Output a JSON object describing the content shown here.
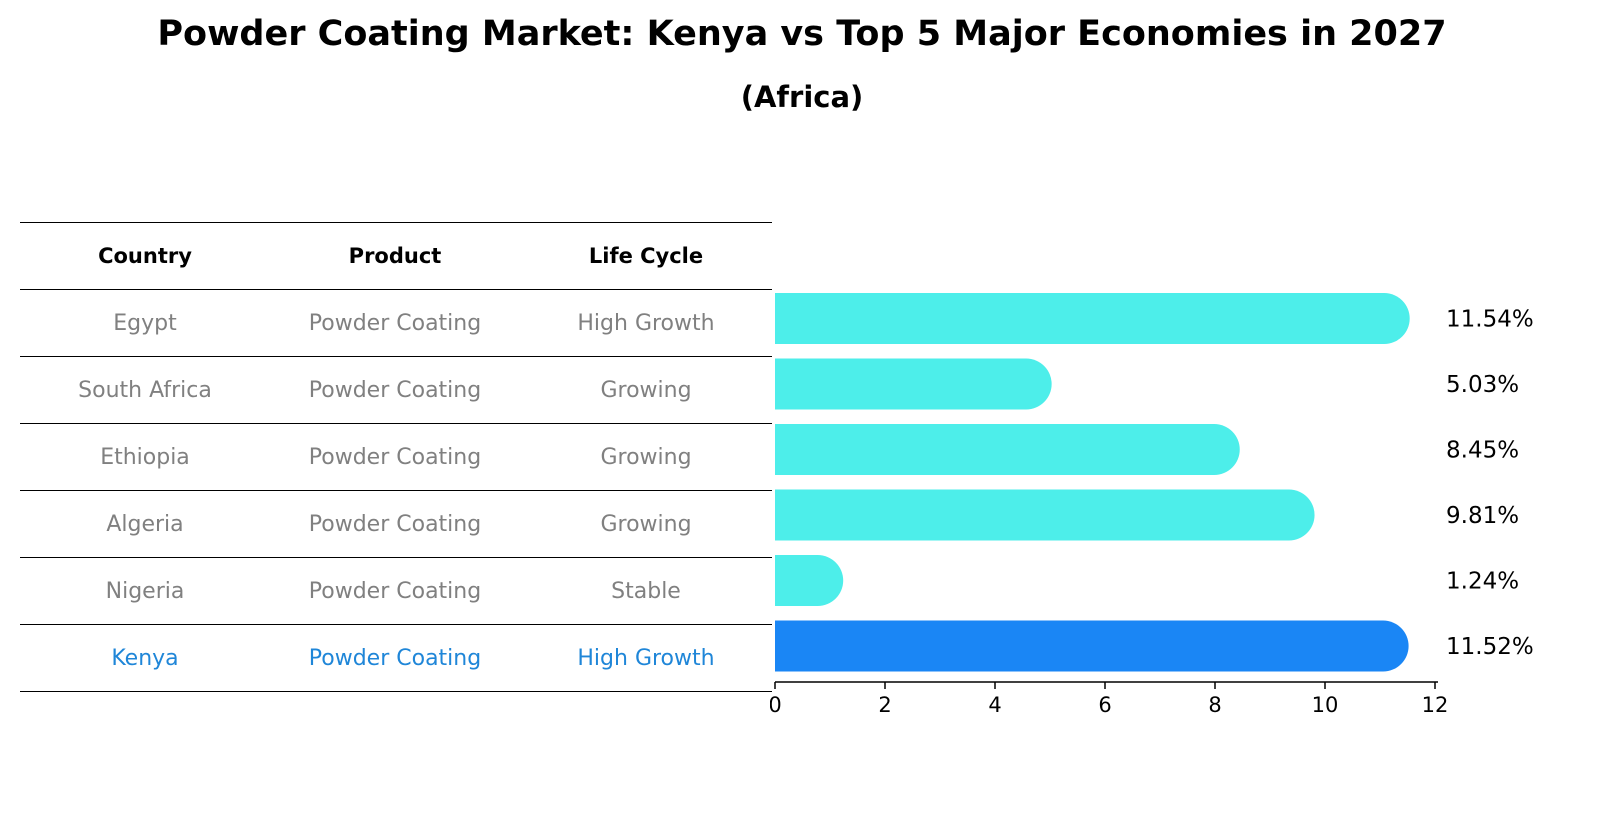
{
  "title": "Powder Coating Market: Kenya vs Top 5 Major Economies in 2027",
  "subtitle": "(Africa)",
  "table": {
    "headers": [
      "Country",
      "Product",
      "Life Cycle"
    ],
    "rows": [
      [
        "Egypt",
        "Powder Coating",
        "High Growth"
      ],
      [
        "South Africa",
        "Powder Coating",
        "Growing"
      ],
      [
        "Ethiopia",
        "Powder Coating",
        "Growing"
      ],
      [
        "Algeria",
        "Powder Coating",
        "Growing"
      ],
      [
        "Nigeria",
        "Powder Coating",
        "Stable"
      ],
      [
        "Kenya",
        "Powder Coating",
        "High Growth"
      ]
    ],
    "highlight_color": "#1f86d8"
  },
  "chart_data": {
    "type": "bar",
    "orientation": "horizontal",
    "categories": [
      "Egypt",
      "South Africa",
      "Ethiopia",
      "Algeria",
      "Nigeria",
      "Kenya"
    ],
    "values": [
      11.54,
      5.03,
      8.45,
      9.81,
      1.24,
      11.52
    ],
    "value_labels": [
      "11.54%",
      "5.03%",
      "8.45%",
      "9.81%",
      "1.24%",
      "11.52%"
    ],
    "xlim": [
      0,
      12
    ],
    "xticks": [
      0,
      2,
      4,
      6,
      8,
      10,
      12
    ],
    "bar_color": "#4deeea",
    "highlight_color": "#1a86f5",
    "highlight_index": 5
  }
}
